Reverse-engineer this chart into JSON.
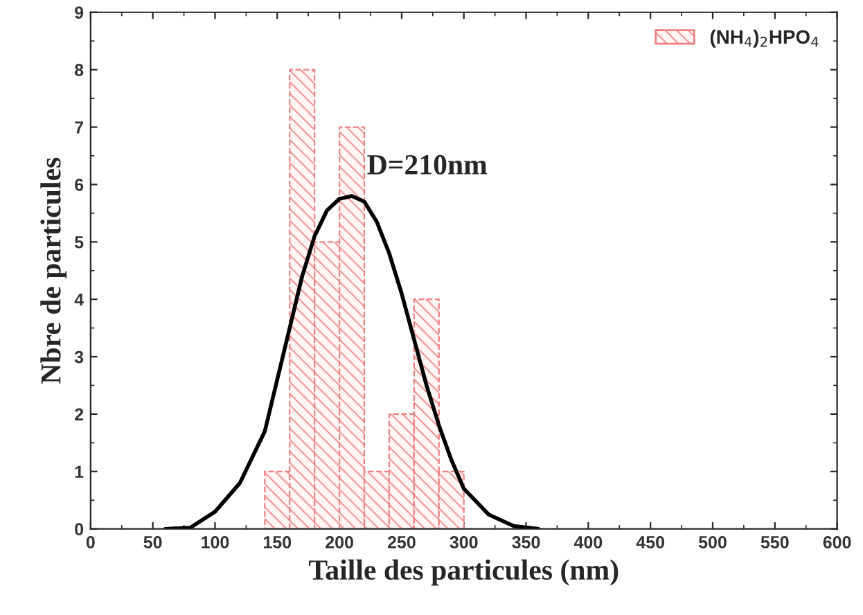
{
  "chart_data": {
    "type": "histogram",
    "xlabel": "Taille des particules (nm)",
    "ylabel": "Nbre de particules",
    "series": [
      {
        "name": "(NH$_{4}$)$_{2}$HPO$_{4}$",
        "color": "#f08080",
        "bins": [
          140,
          160,
          180,
          200,
          220,
          240,
          260,
          280,
          300
        ],
        "values": [
          1,
          8,
          5,
          7,
          1,
          2,
          4,
          1
        ]
      },
      {
        "type": "line",
        "color": "#000000",
        "x": [
          60,
          80,
          100,
          120,
          140,
          150,
          160,
          170,
          180,
          190,
          200,
          210,
          220,
          230,
          240,
          250,
          260,
          270,
          280,
          290,
          300,
          320,
          340,
          360
        ],
        "values": [
          0,
          0.02,
          0.3,
          0.8,
          1.7,
          2.6,
          3.5,
          4.4,
          5.1,
          5.55,
          5.75,
          5.8,
          5.7,
          5.35,
          4.8,
          4.1,
          3.3,
          2.5,
          1.8,
          1.2,
          0.7,
          0.25,
          0.05,
          0
        ]
      }
    ],
    "annotations": [
      {
        "text": "D=210nm",
        "x": 222,
        "y": 6.3
      }
    ],
    "xlim": [
      0,
      600
    ],
    "ylim": [
      0,
      9
    ],
    "xticks": [
      0,
      50,
      100,
      150,
      200,
      250,
      300,
      350,
      400,
      450,
      500,
      550,
      600
    ],
    "yticks": [
      0,
      1,
      2,
      3,
      4,
      5,
      6,
      7,
      8,
      9
    ],
    "grid": false,
    "legend": "top right"
  }
}
